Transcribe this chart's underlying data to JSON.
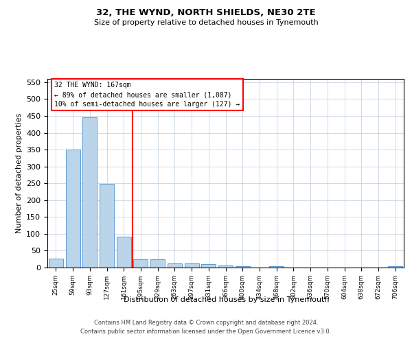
{
  "title1": "32, THE WYND, NORTH SHIELDS, NE30 2TE",
  "title2": "Size of property relative to detached houses in Tynemouth",
  "xlabel": "Distribution of detached houses by size in Tynemouth",
  "ylabel": "Number of detached properties",
  "bar_values": [
    27,
    350,
    445,
    248,
    92,
    24,
    24,
    13,
    13,
    10,
    7,
    5,
    0,
    5,
    0,
    0,
    0,
    0,
    0,
    0,
    5
  ],
  "bin_labels": [
    "25sqm",
    "59sqm",
    "93sqm",
    "127sqm",
    "161sqm",
    "195sqm",
    "229sqm",
    "263sqm",
    "297sqm",
    "331sqm",
    "366sqm",
    "400sqm",
    "434sqm",
    "468sqm",
    "502sqm",
    "536sqm",
    "570sqm",
    "604sqm",
    "638sqm",
    "672sqm",
    "706sqm"
  ],
  "ylim": [
    0,
    560
  ],
  "yticks": [
    0,
    50,
    100,
    150,
    200,
    250,
    300,
    350,
    400,
    450,
    500,
    550
  ],
  "bar_color": "#bad4ea",
  "bar_edge_color": "#5b9bd5",
  "red_line_x": 4.5,
  "ann_line1": "32 THE WYND: 167sqm",
  "ann_line2": "← 89% of detached houses are smaller (1,087)",
  "ann_line3": "10% of semi-detached houses are larger (127) →",
  "footer_line1": "Contains HM Land Registry data © Crown copyright and database right 2024.",
  "footer_line2": "Contains public sector information licensed under the Open Government Licence v3.0.",
  "background_color": "#ffffff",
  "grid_color": "#c8d4e0"
}
